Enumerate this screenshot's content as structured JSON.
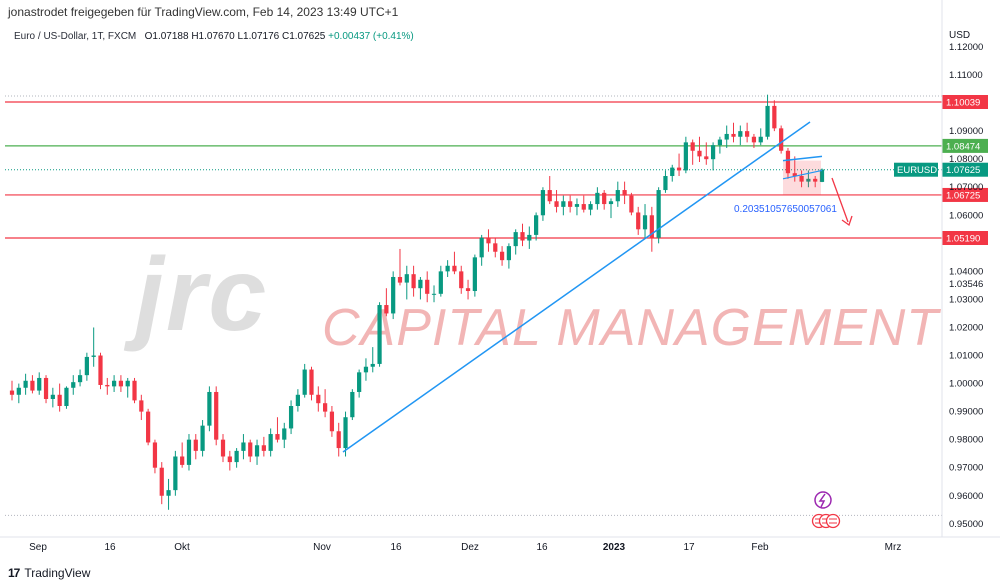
{
  "header": {
    "shared_by": "jonastrodet freigegeben für TradingView.com, Feb 14, 2023 13:49 UTC+1"
  },
  "legend": {
    "symbol": "Euro / US-Dollar, 1T, FXCM",
    "open": "O1.07188",
    "high": "H1.07670",
    "low": "L1.07176",
    "close": "C1.07625",
    "change": "+0.00437 (+0.41%)"
  },
  "watermark": {
    "logo_text": "jrc",
    "company_text": "CAPITAL MANAGEMENT"
  },
  "footer": {
    "brand": "TradingView"
  },
  "chart_data": {
    "type": "candlestick",
    "currency_label": "USD",
    "y_ticks": [
      "1.12000",
      "1.11000",
      "1.09000",
      "1.08000",
      "1.07000",
      "1.06000",
      "1.04000",
      "1.03546",
      "1.03000",
      "1.02000",
      "1.01000",
      "1.00000",
      "0.99000",
      "0.98000",
      "0.97000",
      "0.96000",
      "0.95000"
    ],
    "x_ticks": [
      {
        "label": "Sep",
        "bold": false
      },
      {
        "label": "16",
        "bold": false
      },
      {
        "label": "Okt",
        "bold": false
      },
      {
        "label": "Nov",
        "bold": false
      },
      {
        "label": "16",
        "bold": false
      },
      {
        "label": "Dez",
        "bold": false
      },
      {
        "label": "16",
        "bold": false
      },
      {
        "label": "2023",
        "bold": true
      },
      {
        "label": "17",
        "bold": false
      },
      {
        "label": "Feb",
        "bold": false
      },
      {
        "label": "Mrz",
        "bold": false
      }
    ],
    "horizontal_levels": [
      {
        "value": 1.10039,
        "label": "1.10039",
        "color": "#f23645"
      },
      {
        "value": 1.08474,
        "label": "1.08474",
        "color": "#4caf50"
      },
      {
        "value": 1.06725,
        "label": "1.06725",
        "color": "#f23645"
      },
      {
        "value": 1.0519,
        "label": "1.05190",
        "color": "#f23645"
      }
    ],
    "price_label": {
      "symbol": "EURUSD",
      "value": "1.07625",
      "price": 1.07625
    },
    "measure_label": "0.20351057650057061",
    "colors": {
      "up": "#089981",
      "down": "#f23645",
      "trendline": "#2196f3",
      "grid": "#e0e3eb"
    },
    "candles": [
      [
        0.9975,
        1.001,
        0.994,
        0.996
      ],
      [
        0.996,
        1.0,
        0.993,
        0.9985
      ],
      [
        0.9985,
        1.0035,
        0.996,
        1.001
      ],
      [
        1.001,
        1.003,
        0.9965,
        0.9975
      ],
      [
        0.9975,
        1.004,
        0.996,
        1.002
      ],
      [
        1.002,
        1.003,
        0.993,
        0.9945
      ],
      [
        0.9945,
        0.9985,
        0.9915,
        0.996
      ],
      [
        0.996,
        1.0,
        0.99,
        0.992
      ],
      [
        0.992,
        0.999,
        0.991,
        0.9985
      ],
      [
        0.9985,
        1.003,
        0.996,
        1.0005
      ],
      [
        1.0005,
        1.005,
        0.999,
        1.003
      ],
      [
        1.003,
        1.011,
        1.001,
        1.0095
      ],
      [
        1.0095,
        1.02,
        1.006,
        1.01
      ],
      [
        1.01,
        1.011,
        0.998,
        0.9995
      ],
      [
        0.9995,
        1.002,
        0.996,
        0.999
      ],
      [
        0.999,
        1.003,
        0.997,
        1.001
      ],
      [
        1.001,
        1.003,
        0.997,
        0.999
      ],
      [
        0.999,
        1.002,
        0.995,
        1.001
      ],
      [
        1.001,
        1.002,
        0.993,
        0.994
      ],
      [
        0.994,
        0.996,
        0.987,
        0.99
      ],
      [
        0.99,
        0.991,
        0.978,
        0.979
      ],
      [
        0.979,
        0.98,
        0.968,
        0.97
      ],
      [
        0.97,
        0.972,
        0.957,
        0.96
      ],
      [
        0.96,
        0.966,
        0.955,
        0.962
      ],
      [
        0.962,
        0.976,
        0.96,
        0.974
      ],
      [
        0.974,
        0.979,
        0.97,
        0.971
      ],
      [
        0.971,
        0.982,
        0.969,
        0.98
      ],
      [
        0.98,
        0.982,
        0.973,
        0.976
      ],
      [
        0.976,
        0.987,
        0.974,
        0.985
      ],
      [
        0.985,
        0.999,
        0.983,
        0.997
      ],
      [
        0.997,
        0.999,
        0.978,
        0.98
      ],
      [
        0.98,
        0.982,
        0.972,
        0.974
      ],
      [
        0.974,
        0.976,
        0.969,
        0.972
      ],
      [
        0.972,
        0.977,
        0.97,
        0.976
      ],
      [
        0.976,
        0.982,
        0.973,
        0.979
      ],
      [
        0.979,
        0.98,
        0.972,
        0.974
      ],
      [
        0.974,
        0.98,
        0.971,
        0.978
      ],
      [
        0.978,
        0.981,
        0.974,
        0.976
      ],
      [
        0.976,
        0.984,
        0.974,
        0.982
      ],
      [
        0.982,
        0.988,
        0.979,
        0.98
      ],
      [
        0.98,
        0.986,
        0.977,
        0.984
      ],
      [
        0.984,
        0.994,
        0.982,
        0.992
      ],
      [
        0.992,
        0.998,
        0.99,
        0.996
      ],
      [
        0.996,
        1.007,
        0.995,
        1.005
      ],
      [
        1.005,
        1.006,
        0.994,
        0.996
      ],
      [
        0.996,
        0.999,
        0.99,
        0.993
      ],
      [
        0.993,
        0.998,
        0.988,
        0.99
      ],
      [
        0.99,
        0.992,
        0.981,
        0.983
      ],
      [
        0.983,
        0.986,
        0.974,
        0.977
      ],
      [
        0.977,
        0.99,
        0.974,
        0.988
      ],
      [
        0.988,
        0.998,
        0.987,
        0.997
      ],
      [
        0.997,
        1.005,
        0.995,
        1.004
      ],
      [
        1.004,
        1.009,
        1.001,
        1.006
      ],
      [
        1.006,
        1.013,
        1.004,
        1.007
      ],
      [
        1.007,
        1.029,
        1.006,
        1.028
      ],
      [
        1.028,
        1.034,
        1.024,
        1.025
      ],
      [
        1.025,
        1.04,
        1.023,
        1.038
      ],
      [
        1.038,
        1.048,
        1.035,
        1.036
      ],
      [
        1.036,
        1.042,
        1.03,
        1.039
      ],
      [
        1.039,
        1.042,
        1.031,
        1.034
      ],
      [
        1.034,
        1.038,
        1.03,
        1.037
      ],
      [
        1.037,
        1.04,
        1.029,
        1.032
      ],
      [
        1.032,
        1.035,
        1.029,
        1.032
      ],
      [
        1.032,
        1.042,
        1.031,
        1.04
      ],
      [
        1.04,
        1.044,
        1.038,
        1.042
      ],
      [
        1.042,
        1.047,
        1.039,
        1.04
      ],
      [
        1.04,
        1.042,
        1.032,
        1.034
      ],
      [
        1.034,
        1.037,
        1.03,
        1.033
      ],
      [
        1.033,
        1.046,
        1.031,
        1.045
      ],
      [
        1.045,
        1.053,
        1.042,
        1.052
      ],
      [
        1.052,
        1.055,
        1.047,
        1.05
      ],
      [
        1.05,
        1.052,
        1.045,
        1.047
      ],
      [
        1.047,
        1.049,
        1.042,
        1.044
      ],
      [
        1.044,
        1.05,
        1.041,
        1.049
      ],
      [
        1.049,
        1.055,
        1.046,
        1.054
      ],
      [
        1.054,
        1.057,
        1.049,
        1.051
      ],
      [
        1.051,
        1.056,
        1.048,
        1.053
      ],
      [
        1.053,
        1.061,
        1.051,
        1.06
      ],
      [
        1.06,
        1.07,
        1.058,
        1.069
      ],
      [
        1.069,
        1.074,
        1.064,
        1.065
      ],
      [
        1.065,
        1.069,
        1.061,
        1.063
      ],
      [
        1.063,
        1.067,
        1.06,
        1.065
      ],
      [
        1.065,
        1.067,
        1.061,
        1.063
      ],
      [
        1.063,
        1.066,
        1.06,
        1.064
      ],
      [
        1.064,
        1.067,
        1.061,
        1.062
      ],
      [
        1.062,
        1.065,
        1.06,
        1.064
      ],
      [
        1.064,
        1.07,
        1.062,
        1.068
      ],
      [
        1.068,
        1.069,
        1.062,
        1.064
      ],
      [
        1.064,
        1.066,
        1.059,
        1.065
      ],
      [
        1.065,
        1.072,
        1.063,
        1.069
      ],
      [
        1.069,
        1.072,
        1.064,
        1.067
      ],
      [
        1.067,
        1.068,
        1.06,
        1.061
      ],
      [
        1.061,
        1.063,
        1.053,
        1.055
      ],
      [
        1.055,
        1.064,
        1.052,
        1.06
      ],
      [
        1.06,
        1.063,
        1.047,
        1.052
      ],
      [
        1.052,
        1.07,
        1.05,
        1.069
      ],
      [
        1.069,
        1.076,
        1.068,
        1.074
      ],
      [
        1.074,
        1.078,
        1.072,
        1.077
      ],
      [
        1.077,
        1.082,
        1.074,
        1.076
      ],
      [
        1.076,
        1.088,
        1.075,
        1.086
      ],
      [
        1.086,
        1.087,
        1.078,
        1.083
      ],
      [
        1.083,
        1.088,
        1.079,
        1.081
      ],
      [
        1.081,
        1.086,
        1.078,
        1.08
      ],
      [
        1.08,
        1.086,
        1.076,
        1.085
      ],
      [
        1.085,
        1.088,
        1.082,
        1.087
      ],
      [
        1.087,
        1.092,
        1.084,
        1.089
      ],
      [
        1.089,
        1.093,
        1.086,
        1.088
      ],
      [
        1.088,
        1.092,
        1.085,
        1.09
      ],
      [
        1.09,
        1.093,
        1.086,
        1.088
      ],
      [
        1.088,
        1.089,
        1.084,
        1.086
      ],
      [
        1.086,
        1.091,
        1.085,
        1.088
      ],
      [
        1.088,
        1.103,
        1.087,
        1.099
      ],
      [
        1.099,
        1.101,
        1.09,
        1.091
      ],
      [
        1.091,
        1.092,
        1.082,
        1.083
      ],
      [
        1.083,
        1.084,
        1.073,
        1.075
      ],
      [
        1.075,
        1.081,
        1.072,
        1.074
      ],
      [
        1.074,
        1.076,
        1.07,
        1.072
      ],
      [
        1.072,
        1.076,
        1.07,
        1.073
      ],
      [
        1.073,
        1.074,
        1.07,
        1.072
      ],
      [
        1.0719,
        1.0767,
        1.0718,
        1.0763
      ]
    ]
  }
}
